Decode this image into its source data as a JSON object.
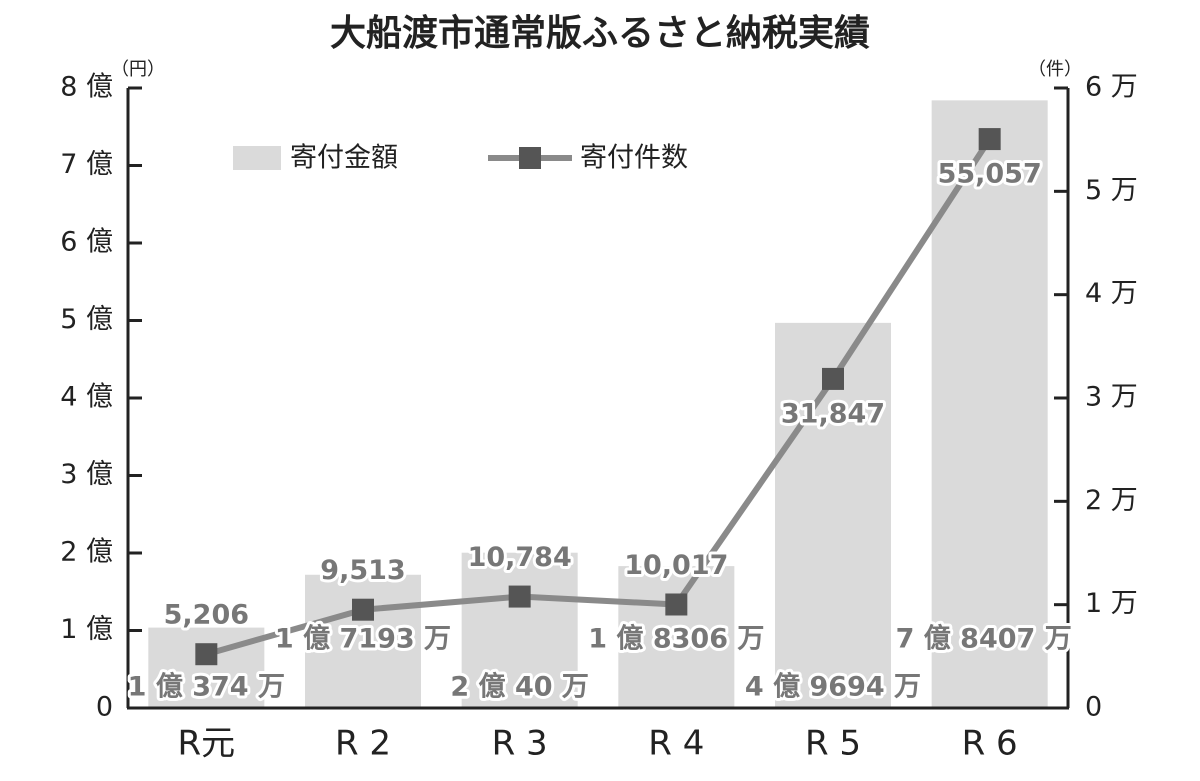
{
  "chart_data": {
    "type": "bar_line",
    "title": "大船渡市通常版ふるさと納税実績",
    "y_unit": "（円）",
    "y2_unit": "（件）",
    "categories": [
      "R元",
      "R 2",
      "R 3",
      "R 4",
      "R 5",
      "R 6"
    ],
    "series": [
      {
        "name": "寄付金額",
        "type": "bar",
        "color": "#dadada",
        "axis": "y",
        "values": [
          103740000,
          171930000,
          200400000,
          183060000,
          496940000,
          784070000
        ],
        "value_labels": [
          "1 億 374 万",
          "1 億 7193 万",
          "2 億 40 万",
          "1 億 8306 万",
          "4 億 9694 万",
          "7 億 8407 万"
        ]
      },
      {
        "name": "寄付件数",
        "type": "line",
        "color": "#8a8a8a",
        "marker_color": "#555555",
        "axis": "y2",
        "values": [
          5206,
          9513,
          10784,
          10017,
          31847,
          55057
        ],
        "value_labels": [
          "5,206",
          "9,513",
          "10,784",
          "10,017",
          "31,847",
          "55,057"
        ]
      }
    ],
    "ylim": [
      0,
      800000000
    ],
    "yticks": [
      0,
      {
        "value": 100000000,
        "label": "1 億"
      },
      {
        "value": 200000000,
        "label": "2 億"
      },
      {
        "value": 300000000,
        "label": "3 億"
      },
      {
        "value": 400000000,
        "label": "4 億"
      },
      {
        "value": 500000000,
        "label": "5 億"
      },
      {
        "value": 600000000,
        "label": "6 億"
      },
      {
        "value": 700000000,
        "label": "7 億"
      },
      {
        "value": 800000000,
        "label": "8 億"
      }
    ],
    "y2lim": [
      0,
      60000
    ],
    "y2ticks": [
      0,
      {
        "value": 10000,
        "label": "1 万"
      },
      {
        "value": 20000,
        "label": "2 万"
      },
      {
        "value": 30000,
        "label": "3 万"
      },
      {
        "value": 40000,
        "label": "4 万"
      },
      {
        "value": 50000,
        "label": "5 万"
      },
      {
        "value": 60000,
        "label": "6 万"
      }
    ],
    "legend": "upper left"
  }
}
